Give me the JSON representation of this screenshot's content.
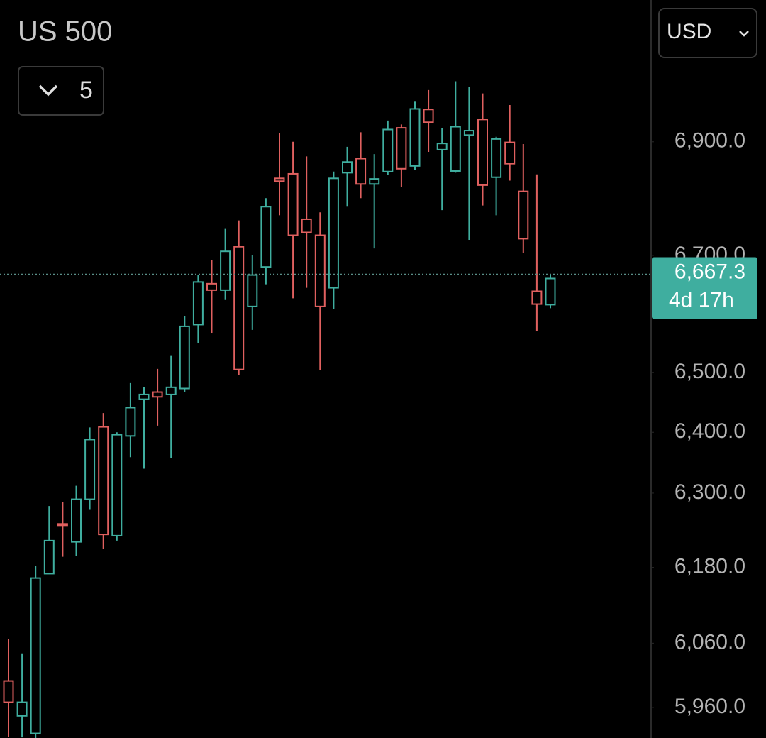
{
  "chart_data": {
    "type": "candlestick",
    "title": "US 500",
    "log": true,
    "ylim": [
      5913,
      7158
    ],
    "yticks": [
      {
        "value": 5960,
        "label": "5,960.0"
      },
      {
        "value": 6060,
        "label": "6,060.0"
      },
      {
        "value": 6180,
        "label": "6,180.0"
      },
      {
        "value": 6300,
        "label": "6,300.0"
      },
      {
        "value": 6400,
        "label": "6,400.0"
      },
      {
        "value": 6500,
        "label": "6,500.0"
      },
      {
        "value": 6700,
        "label": "6,700.0"
      },
      {
        "value": 6900,
        "label": "6,900.0"
      }
    ],
    "up_color": "#3fae9f",
    "down_color": "#e0605f",
    "open": [
      6001,
      5947,
      5920,
      6170,
      6250,
      6221,
      6290,
      6409,
      6231,
      6394,
      6455,
      6467,
      6463,
      6473,
      6581,
      6651,
      6640,
      6715,
      6612,
      6680,
      6835,
      6843,
      6763,
      6735,
      6644,
      6845,
      6870,
      6825,
      6847,
      6925,
      6857,
      6958,
      6886,
      6848,
      6912,
      6940,
      6837,
      6899,
      6812,
      6638,
      6615
    ],
    "high": [
      6066,
      6044,
      6183,
      6279,
      6285,
      6312,
      6408,
      6432,
      6400,
      6482,
      6475,
      6506,
      6529,
      6596,
      6666,
      6692,
      6746,
      6761,
      6700,
      6800,
      6916,
      6900,
      6874,
      6775,
      6847,
      6891,
      6917,
      6878,
      6938,
      6931,
      6972,
      6993,
      6925,
      7009,
      6999,
      6987,
      6909,
      6966,
      6896,
      6842,
      6666
    ],
    "low": [
      5915,
      5914,
      5913,
      6170,
      6197,
      6198,
      6274,
      6210,
      6223,
      6359,
      6340,
      6411,
      6358,
      6467,
      6549,
      6567,
      6623,
      6496,
      6572,
      6650,
      6770,
      6626,
      6644,
      6504,
      6608,
      6785,
      6800,
      6712,
      6841,
      6820,
      6850,
      6882,
      6779,
      6845,
      6727,
      6787,
      6770,
      6831,
      6704,
      6570,
      6609
    ],
    "close": [
      5968,
      5968,
      6163,
      6223,
      6248,
      6290,
      6388,
      6233,
      6396,
      6441,
      6463,
      6459,
      6475,
      6578,
      6654,
      6640,
      6707,
      6505,
      6666,
      6785,
      6830,
      6735,
      6740,
      6612,
      6835,
      6864,
      6825,
      6834,
      6922,
      6852,
      6959,
      6935,
      6897,
      6927,
      6920,
      6823,
      6905,
      6861,
      6729,
      6616,
      6660
    ],
    "current_price": {
      "value": 6667.3,
      "label": "6,667.3"
    },
    "countdown": "4d 17h"
  },
  "controls": {
    "interval": "5",
    "currency": "USD"
  }
}
